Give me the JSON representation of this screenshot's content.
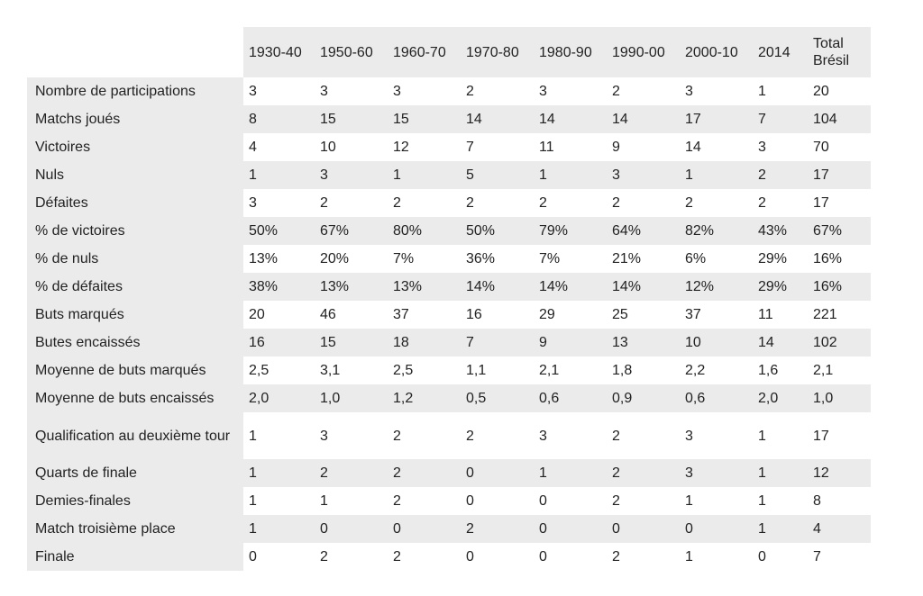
{
  "table": {
    "header": [
      "1930-40",
      "1950-60",
      "1960-70",
      "1970-80",
      "1980-90",
      "1990-00",
      "2000-10",
      "2014",
      "Total Brésil"
    ],
    "rows": [
      [
        "Nombre de participations",
        "3",
        "3",
        "3",
        "2",
        "3",
        "2",
        "3",
        "1",
        "20"
      ],
      [
        "Matchs joués",
        "8",
        "15",
        "15",
        "14",
        "14",
        "14",
        "17",
        "7",
        "104"
      ],
      [
        "Victoires",
        "4",
        "10",
        "12",
        "7",
        "11",
        "9",
        "14",
        "3",
        "70"
      ],
      [
        "Nuls",
        "1",
        "3",
        "1",
        "5",
        "1",
        "3",
        "1",
        "2",
        "17"
      ],
      [
        "Défaites",
        "3",
        "2",
        "2",
        "2",
        "2",
        "2",
        "2",
        "2",
        "17"
      ],
      [
        "% de victoires",
        "50%",
        "67%",
        "80%",
        "50%",
        "79%",
        "64%",
        "82%",
        "43%",
        "67%"
      ],
      [
        "% de nuls",
        "13%",
        "20%",
        "7%",
        "36%",
        "7%",
        "21%",
        "6%",
        "29%",
        "16%"
      ],
      [
        "% de défaites",
        "38%",
        "13%",
        "13%",
        "14%",
        "14%",
        "14%",
        "12%",
        "29%",
        "16%"
      ],
      [
        "Buts marqués",
        "20",
        "46",
        "37",
        "16",
        "29",
        "25",
        "37",
        "11",
        "221"
      ],
      [
        "Butes encaissés",
        "16",
        "15",
        "18",
        "7",
        "9",
        "13",
        "10",
        "14",
        "102"
      ],
      [
        "Moyenne de buts marqués",
        "2,5",
        "3,1",
        "2,5",
        "1,1",
        "2,1",
        "1,8",
        "2,2",
        "1,6",
        "2,1"
      ],
      [
        "Moyenne de buts encaissés",
        "2,0",
        "1,0",
        "1,2",
        "0,5",
        "0,6",
        "0,9",
        "0,6",
        "2,0",
        "1,0"
      ],
      [
        "Qualification au deuxième tour",
        "1",
        "3",
        "2",
        "2",
        "3",
        "2",
        "3",
        "1",
        "17"
      ],
      [
        "Quarts de finale",
        "1",
        "2",
        "2",
        "0",
        "1",
        "2",
        "3",
        "1",
        "12"
      ],
      [
        "Demies-finales",
        "1",
        "1",
        "2",
        "0",
        "0",
        "2",
        "1",
        "1",
        "8"
      ],
      [
        "Match troisième place",
        "1",
        "0",
        "0",
        "2",
        "0",
        "0",
        "0",
        "1",
        "4"
      ],
      [
        "Finale",
        "0",
        "2",
        "2",
        "0",
        "0",
        "2",
        "1",
        "0",
        "7"
      ]
    ]
  }
}
